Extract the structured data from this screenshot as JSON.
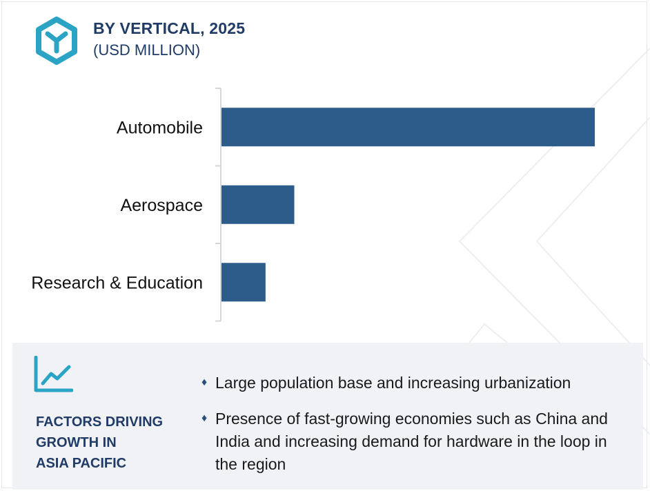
{
  "header": {
    "title": "BY VERTICAL, 2025",
    "subtitle": "(USD MILLION)",
    "logo_icon": "cube-logo-icon",
    "logo_color": "#2ba3c4"
  },
  "chart_data": {
    "type": "bar",
    "orientation": "horizontal",
    "title": "BY VERTICAL, 2025",
    "unit": "(USD MILLION)",
    "categories": [
      "Automobile",
      "Aerospace",
      "Research & Education"
    ],
    "values": [
      100,
      19.5,
      11.8
    ],
    "bar_color": "#2d5b8a",
    "axis_color": "#d4d7dc",
    "grid": false,
    "legend": "none"
  },
  "factors": {
    "icon": "trend-line-icon",
    "title_lines": [
      "FACTORS DRIVING",
      "GROWTH IN",
      "ASIA PACIFIC"
    ],
    "bullets": [
      "Large population base and increasing urbanization",
      "Presence of fast-growing economies such as China and India and increasing demand for hardware in the loop in the region"
    ],
    "bullet_glyph": "♦"
  }
}
